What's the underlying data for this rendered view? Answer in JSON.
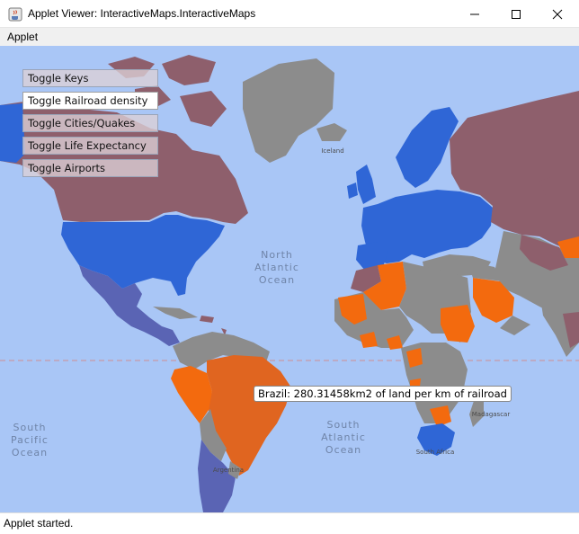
{
  "window": {
    "title": "Applet Viewer: InteractiveMaps.InteractiveMaps",
    "icon": "java-coffee-icon",
    "controls": [
      "minimize-icon",
      "maximize-icon",
      "close-icon"
    ]
  },
  "menubar": {
    "items": [
      "Applet"
    ]
  },
  "toggles": [
    {
      "label": "Toggle Keys",
      "active": false
    },
    {
      "label": "Toggle Railroad density",
      "active": true
    },
    {
      "label": "Toggle Cities/Quakes",
      "active": false
    },
    {
      "label": "Toggle Life Expectancy",
      "active": false
    },
    {
      "label": "Toggle Airports",
      "active": false
    }
  ],
  "tooltip": {
    "text": "Brazil: 280.31458km2 of land per km of railroad"
  },
  "map_labels": {
    "north_atlantic": [
      "North",
      "Atlantic",
      "Ocean"
    ],
    "south_atlantic": [
      "South",
      "Atlantic",
      "Ocean"
    ],
    "south_pacific": [
      "South",
      "Pacific",
      "Ocean"
    ],
    "iceland": "Iceland",
    "madagascar": "Madagascar",
    "south_africa": "South Africa",
    "argentina": "Argentina"
  },
  "colors": {
    "ocean": "#a9c6f6",
    "high_density": "#2f66d6",
    "mid_density": "#8e5f6c",
    "low_density": "#f36a0e",
    "brazil_highlight": "#e06520",
    "no_data": "#8c8c8c",
    "purple_blue": "#5a64b4"
  },
  "status": {
    "text": "Applet started."
  }
}
